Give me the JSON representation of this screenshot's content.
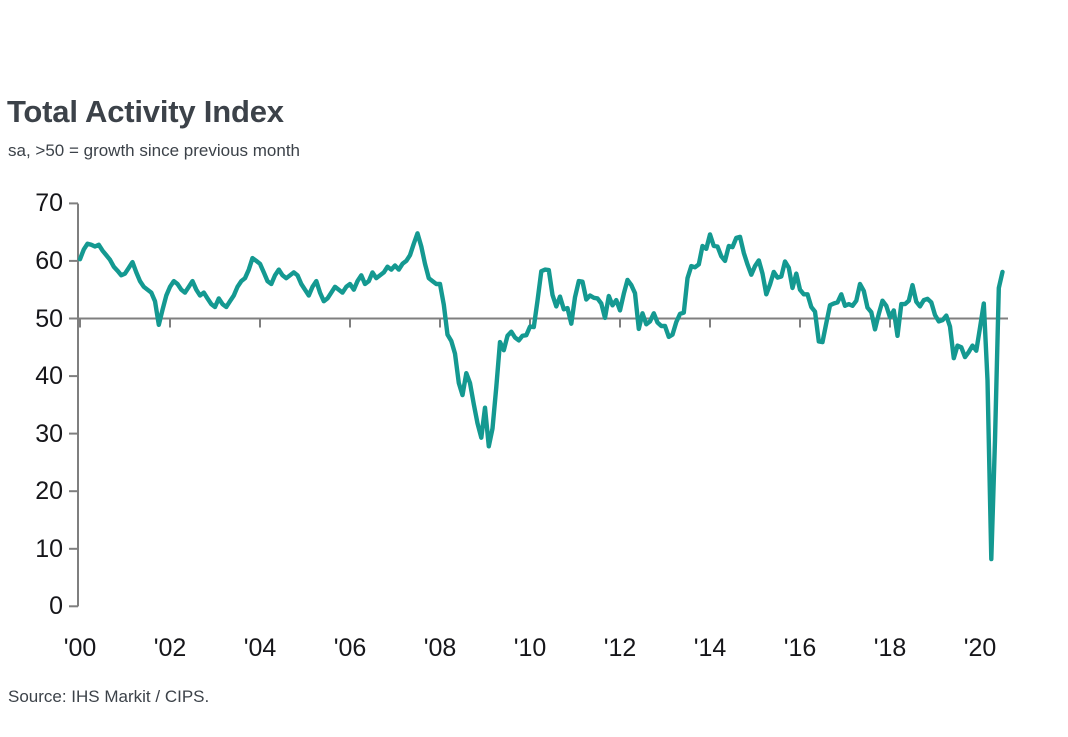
{
  "header": {
    "title": "Total Activity Index",
    "subtitle": "sa, >50 = growth since previous month"
  },
  "footer": {
    "source": "Source: IHS Markit / CIPS."
  },
  "chart_data": {
    "type": "line",
    "title": "Total Activity Index",
    "subtitle": "sa, >50 = growth since previous month",
    "source": "Source: IHS Markit / CIPS.",
    "series_name": "Total Activity Index (sa)",
    "frequency": "monthly",
    "start_year": 2000,
    "start_month": 1,
    "end_label": "Jul 2020",
    "ylim": [
      0,
      70
    ],
    "yticks": [
      0,
      10,
      20,
      30,
      40,
      50,
      60,
      70
    ],
    "xticks": [
      "'00",
      "'02",
      "'04",
      "'06",
      "'08",
      "'10",
      "'12",
      "'14",
      "'16",
      "'18",
      "'20"
    ],
    "baseline": 50,
    "grid": "baseline-only",
    "legend": "none",
    "line_color": "#149991",
    "axis_color": "#7f7f7f",
    "values": [
      60.3,
      62.0,
      63.0,
      62.8,
      62.5,
      62.8,
      61.8,
      61.0,
      60.2,
      59.0,
      58.3,
      57.5,
      57.8,
      58.8,
      59.8,
      58.0,
      56.5,
      55.5,
      55.0,
      54.5,
      53.0,
      48.9,
      51.5,
      54.0,
      55.5,
      56.5,
      56.0,
      55.0,
      54.5,
      55.5,
      56.5,
      55.0,
      54.0,
      54.5,
      53.5,
      52.5,
      52.0,
      53.5,
      52.5,
      52.0,
      53.0,
      54.0,
      55.5,
      56.5,
      57.0,
      58.5,
      60.5,
      60.0,
      59.5,
      58.0,
      56.5,
      56.0,
      57.5,
      58.5,
      57.5,
      57.0,
      57.5,
      58.0,
      57.5,
      56.0,
      55.0,
      54.0,
      55.5,
      56.5,
      54.5,
      53.0,
      53.5,
      54.5,
      55.5,
      55.0,
      54.5,
      55.5,
      56.0,
      55.0,
      56.5,
      57.5,
      56.0,
      56.5,
      58.0,
      57.0,
      57.5,
      58.0,
      59.0,
      58.5,
      59.2,
      58.5,
      59.5,
      60.0,
      61.0,
      63.0,
      64.8,
      62.5,
      59.5,
      57.0,
      56.5,
      56.0,
      56.0,
      52.4,
      47.2,
      46.1,
      43.9,
      38.8,
      36.7,
      40.5,
      38.8,
      35.1,
      31.8,
      29.3,
      34.5,
      27.8,
      30.9,
      38.1,
      45.9,
      44.5,
      47.0,
      47.7,
      46.7,
      46.2,
      47.0,
      47.1,
      48.6,
      48.5,
      53.1,
      58.2,
      58.5,
      58.4,
      54.1,
      52.1,
      53.8,
      51.6,
      51.8,
      49.1,
      53.7,
      56.5,
      56.4,
      53.3,
      54.0,
      53.6,
      53.5,
      52.6,
      50.1,
      53.9,
      52.3,
      53.2,
      51.4,
      54.3,
      56.7,
      55.8,
      54.4,
      48.2,
      50.9,
      49.0,
      49.5,
      50.9,
      49.3,
      48.7,
      48.7,
      46.8,
      47.2,
      49.4,
      50.8,
      51.0,
      57.0,
      59.1,
      58.9,
      59.4,
      62.6,
      62.1,
      64.6,
      62.6,
      62.5,
      60.8,
      60.0,
      62.6,
      62.4,
      64.0,
      64.2,
      61.4,
      59.4,
      57.6,
      59.1,
      60.1,
      57.8,
      54.2,
      55.9,
      58.1,
      57.1,
      57.3,
      59.9,
      58.8,
      55.3,
      57.8,
      55.0,
      54.2,
      54.2,
      52.0,
      51.2,
      46.0,
      45.9,
      49.2,
      52.3,
      52.6,
      52.8,
      54.2,
      52.2,
      52.5,
      52.2,
      53.1,
      56.0,
      54.8,
      51.9,
      51.1,
      48.1,
      50.8,
      53.1,
      52.2,
      50.2,
      51.4,
      47.0,
      52.5,
      52.5,
      53.1,
      55.8,
      52.9,
      52.1,
      53.2,
      53.4,
      52.8,
      50.6,
      49.5,
      49.7,
      50.5,
      48.6,
      43.1,
      45.3,
      45.0,
      43.3,
      44.2,
      45.3,
      44.4,
      48.4,
      52.6,
      39.3,
      8.2,
      28.9,
      55.3,
      58.1
    ]
  }
}
